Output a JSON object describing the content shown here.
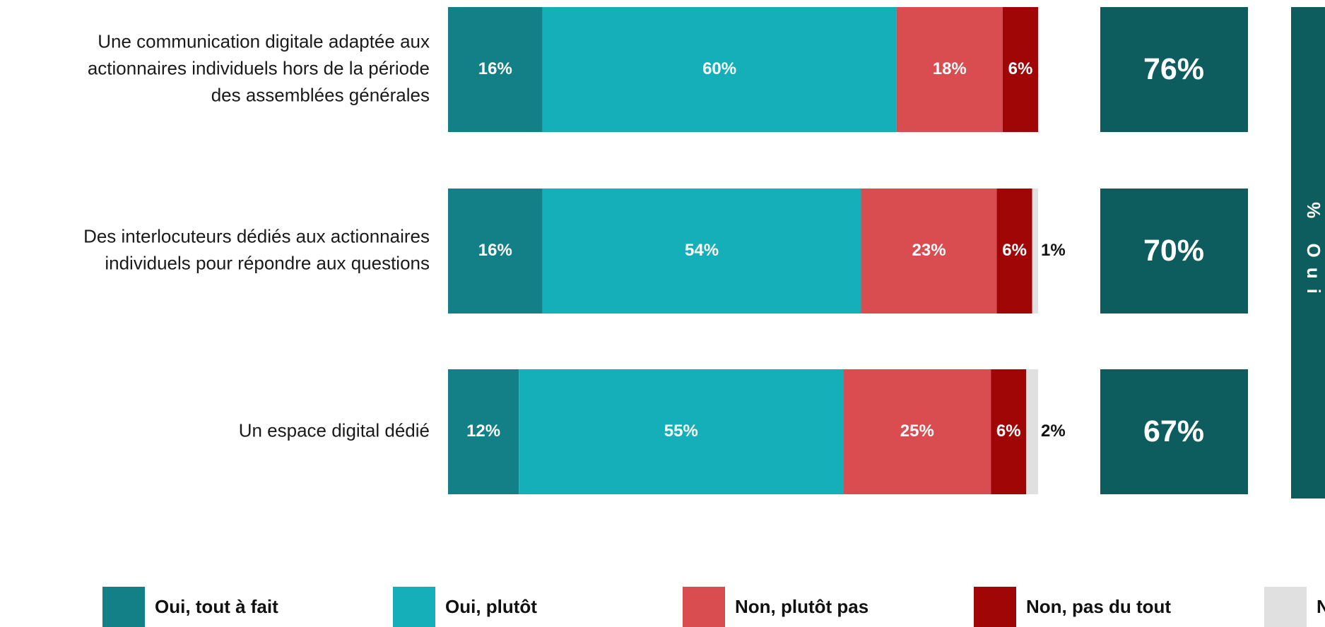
{
  "chart_data": {
    "type": "stacked-bar-horizontal",
    "categories": [
      "Une communication digitale adaptée aux actionnaires individuels hors de la période des assemblées générales",
      "Des interlocuteurs dédiés aux actionnaires individuels pour répondre aux questions",
      "Un espace digital dédié"
    ],
    "series": [
      {
        "name": "Oui, tout à fait",
        "color": "#137f86",
        "values": [
          16,
          16,
          12
        ],
        "value_labels": [
          "16%",
          "16%",
          "12%"
        ]
      },
      {
        "name": "Oui, plutôt",
        "color": "#14afb8",
        "values": [
          60,
          54,
          55
        ],
        "value_labels": [
          "60%",
          "54%",
          "55%"
        ]
      },
      {
        "name": "Non, plutôt pas",
        "color": "#d94c4f",
        "values": [
          18,
          23,
          25
        ],
        "value_labels": [
          "18%",
          "23%",
          "25%"
        ]
      },
      {
        "name": "Non, pas du tout",
        "color": "#a00606",
        "values": [
          6,
          6,
          6
        ],
        "value_labels": [
          "6%",
          "6%",
          "6%"
        ]
      },
      {
        "name": "N",
        "color": "#e0e0e0",
        "values": [
          0,
          1,
          2
        ],
        "value_labels": [
          null,
          "1%",
          "2%"
        ]
      }
    ],
    "totals": {
      "title": "% Oui",
      "color": "#0d5c5e",
      "values": [
        76,
        70,
        67
      ],
      "value_labels": [
        "76%",
        "70%",
        "67%"
      ]
    }
  }
}
